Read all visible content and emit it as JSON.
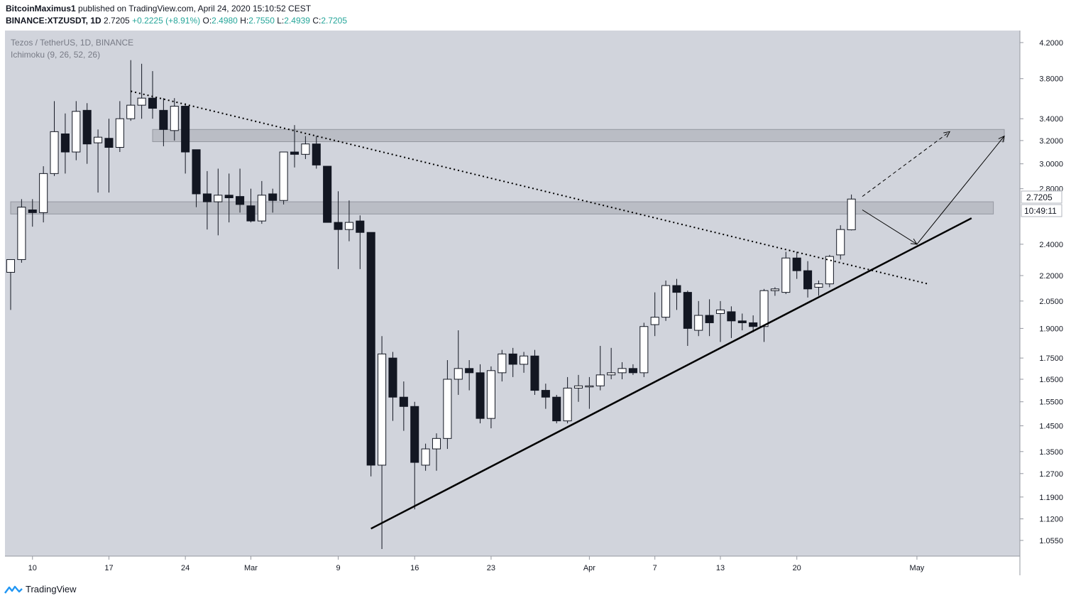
{
  "header": {
    "author": "BitcoinMaximus1",
    "published": "published on TradingView.com, April 24, 2020 15:10:52 CEST",
    "symbol": "BINANCE:XTZUSDT, 1D",
    "last": "2.7205",
    "change": "+0.2225 (+8.91%)",
    "o_label": "O:",
    "o": "2.4980",
    "h_label": "H:",
    "h": "2.7550",
    "l_label": "L:",
    "l": "2.4939",
    "c_label": "C:",
    "c": "2.7205"
  },
  "pane": {
    "title": "Tezos / TetherUS, 1D, BINANCE",
    "indicator": "Ichimoku (9, 26, 52, 26)"
  },
  "price_tag": {
    "value": "2.7205",
    "countdown": "10:49:11"
  },
  "footer": {
    "brand": "TradingView"
  },
  "colors": {
    "background": "#d1d4dc",
    "up_body": "#ffffff",
    "down_body": "#131722",
    "zone": "#b2b5be",
    "line": "#000000"
  },
  "chart_data": {
    "type": "candlestick",
    "y_scale": "log",
    "ylim": [
      1.02,
      4.3
    ],
    "y_ticks": [
      "4.2000",
      "3.8000",
      "3.4000",
      "3.2000",
      "3.0000",
      "2.8000",
      "2.4000",
      "2.2000",
      "2.0500",
      "1.9000",
      "1.7500",
      "1.6500",
      "1.5500",
      "1.4500",
      "1.3500",
      "1.2700",
      "1.1900",
      "1.1200",
      "1.0550"
    ],
    "x_ticks": [
      {
        "date": "2020-02-10",
        "label": "10"
      },
      {
        "date": "2020-02-17",
        "label": "17"
      },
      {
        "date": "2020-02-24",
        "label": "24"
      },
      {
        "date": "2020-03-01",
        "label": "Mar"
      },
      {
        "date": "2020-03-09",
        "label": "9"
      },
      {
        "date": "2020-03-16",
        "label": "16"
      },
      {
        "date": "2020-03-23",
        "label": "23"
      },
      {
        "date": "2020-04-01",
        "label": "Apr"
      },
      {
        "date": "2020-04-07",
        "label": "7"
      },
      {
        "date": "2020-04-13",
        "label": "13"
      },
      {
        "date": "2020-04-20",
        "label": "20"
      },
      {
        "date": "2020-05-01",
        "label": "May"
      }
    ],
    "x_range": [
      "2020-02-08",
      "2020-05-09"
    ],
    "candles": [
      {
        "d": "2020-02-08",
        "o": 2.22,
        "h": 2.3,
        "l": 2.0,
        "c": 2.3
      },
      {
        "d": "2020-02-09",
        "o": 2.3,
        "h": 2.72,
        "l": 2.28,
        "c": 2.66
      },
      {
        "d": "2020-02-10",
        "o": 2.64,
        "h": 2.72,
        "l": 2.52,
        "c": 2.62
      },
      {
        "d": "2020-02-11",
        "o": 2.62,
        "h": 2.98,
        "l": 2.55,
        "c": 2.92
      },
      {
        "d": "2020-02-12",
        "o": 2.92,
        "h": 3.57,
        "l": 2.9,
        "c": 3.28
      },
      {
        "d": "2020-02-13",
        "o": 3.26,
        "h": 3.45,
        "l": 2.92,
        "c": 3.1
      },
      {
        "d": "2020-02-14",
        "o": 3.1,
        "h": 3.57,
        "l": 3.03,
        "c": 3.47
      },
      {
        "d": "2020-02-15",
        "o": 3.48,
        "h": 3.55,
        "l": 3.0,
        "c": 3.17
      },
      {
        "d": "2020-02-16",
        "o": 3.18,
        "h": 3.3,
        "l": 2.77,
        "c": 3.23
      },
      {
        "d": "2020-02-17",
        "o": 3.22,
        "h": 3.4,
        "l": 2.77,
        "c": 3.14
      },
      {
        "d": "2020-02-18",
        "o": 3.14,
        "h": 3.57,
        "l": 3.1,
        "c": 3.4
      },
      {
        "d": "2020-02-19",
        "o": 3.4,
        "h": 4.0,
        "l": 3.38,
        "c": 3.53
      },
      {
        "d": "2020-02-20",
        "o": 3.53,
        "h": 3.96,
        "l": 3.4,
        "c": 3.6
      },
      {
        "d": "2020-02-21",
        "o": 3.6,
        "h": 3.88,
        "l": 3.4,
        "c": 3.5
      },
      {
        "d": "2020-02-22",
        "o": 3.48,
        "h": 3.6,
        "l": 3.15,
        "c": 3.3
      },
      {
        "d": "2020-02-23",
        "o": 3.29,
        "h": 3.6,
        "l": 3.2,
        "c": 3.52
      },
      {
        "d": "2020-02-24",
        "o": 3.52,
        "h": 3.55,
        "l": 2.92,
        "c": 3.1
      },
      {
        "d": "2020-02-25",
        "o": 3.12,
        "h": 3.12,
        "l": 2.66,
        "c": 2.76
      },
      {
        "d": "2020-02-26",
        "o": 2.76,
        "h": 2.94,
        "l": 2.5,
        "c": 2.7
      },
      {
        "d": "2020-02-27",
        "o": 2.7,
        "h": 2.96,
        "l": 2.46,
        "c": 2.75
      },
      {
        "d": "2020-02-28",
        "o": 2.75,
        "h": 2.92,
        "l": 2.55,
        "c": 2.73
      },
      {
        "d": "2020-02-29",
        "o": 2.74,
        "h": 2.96,
        "l": 2.62,
        "c": 2.68
      },
      {
        "d": "2020-03-01",
        "o": 2.67,
        "h": 2.8,
        "l": 2.55,
        "c": 2.56
      },
      {
        "d": "2020-03-02",
        "o": 2.56,
        "h": 2.86,
        "l": 2.54,
        "c": 2.75
      },
      {
        "d": "2020-03-03",
        "o": 2.76,
        "h": 2.8,
        "l": 2.62,
        "c": 2.71
      },
      {
        "d": "2020-03-04",
        "o": 2.71,
        "h": 3.1,
        "l": 2.68,
        "c": 3.1
      },
      {
        "d": "2020-03-05",
        "o": 3.1,
        "h": 3.34,
        "l": 2.97,
        "c": 3.08
      },
      {
        "d": "2020-03-06",
        "o": 3.08,
        "h": 3.24,
        "l": 3.04,
        "c": 3.17
      },
      {
        "d": "2020-03-07",
        "o": 3.17,
        "h": 3.24,
        "l": 2.96,
        "c": 2.99
      },
      {
        "d": "2020-03-08",
        "o": 2.98,
        "h": 2.98,
        "l": 2.55,
        "c": 2.55
      },
      {
        "d": "2020-03-09",
        "o": 2.55,
        "h": 2.78,
        "l": 2.24,
        "c": 2.5
      },
      {
        "d": "2020-03-10",
        "o": 2.5,
        "h": 2.71,
        "l": 2.42,
        "c": 2.55
      },
      {
        "d": "2020-03-11",
        "o": 2.56,
        "h": 2.6,
        "l": 2.24,
        "c": 2.48
      },
      {
        "d": "2020-03-12",
        "o": 2.48,
        "h": 2.48,
        "l": 1.26,
        "c": 1.3
      },
      {
        "d": "2020-03-13",
        "o": 1.3,
        "h": 1.86,
        "l": 1.03,
        "c": 1.77
      },
      {
        "d": "2020-03-14",
        "o": 1.75,
        "h": 1.78,
        "l": 1.47,
        "c": 1.57
      },
      {
        "d": "2020-03-15",
        "o": 1.57,
        "h": 1.64,
        "l": 1.43,
        "c": 1.53
      },
      {
        "d": "2020-03-16",
        "o": 1.53,
        "h": 1.55,
        "l": 1.15,
        "c": 1.31
      },
      {
        "d": "2020-03-17",
        "o": 1.3,
        "h": 1.38,
        "l": 1.28,
        "c": 1.36
      },
      {
        "d": "2020-03-18",
        "o": 1.36,
        "h": 1.42,
        "l": 1.28,
        "c": 1.4
      },
      {
        "d": "2020-03-19",
        "o": 1.4,
        "h": 1.74,
        "l": 1.36,
        "c": 1.65
      },
      {
        "d": "2020-03-20",
        "o": 1.65,
        "h": 1.89,
        "l": 1.58,
        "c": 1.7
      },
      {
        "d": "2020-03-21",
        "o": 1.7,
        "h": 1.74,
        "l": 1.6,
        "c": 1.68
      },
      {
        "d": "2020-03-22",
        "o": 1.68,
        "h": 1.72,
        "l": 1.46,
        "c": 1.48
      },
      {
        "d": "2020-03-23",
        "o": 1.48,
        "h": 1.71,
        "l": 1.44,
        "c": 1.69
      },
      {
        "d": "2020-03-24",
        "o": 1.68,
        "h": 1.79,
        "l": 1.64,
        "c": 1.77
      },
      {
        "d": "2020-03-25",
        "o": 1.77,
        "h": 1.8,
        "l": 1.66,
        "c": 1.72
      },
      {
        "d": "2020-03-26",
        "o": 1.72,
        "h": 1.78,
        "l": 1.68,
        "c": 1.76
      },
      {
        "d": "2020-03-27",
        "o": 1.76,
        "h": 1.79,
        "l": 1.58,
        "c": 1.6
      },
      {
        "d": "2020-03-28",
        "o": 1.6,
        "h": 1.63,
        "l": 1.52,
        "c": 1.57
      },
      {
        "d": "2020-03-29",
        "o": 1.57,
        "h": 1.58,
        "l": 1.46,
        "c": 1.47
      },
      {
        "d": "2020-03-30",
        "o": 1.47,
        "h": 1.66,
        "l": 1.46,
        "c": 1.61
      },
      {
        "d": "2020-03-31",
        "o": 1.61,
        "h": 1.67,
        "l": 1.55,
        "c": 1.62
      },
      {
        "d": "2020-04-01",
        "o": 1.62,
        "h": 1.66,
        "l": 1.52,
        "c": 1.62
      },
      {
        "d": "2020-04-02",
        "o": 1.62,
        "h": 1.81,
        "l": 1.6,
        "c": 1.67
      },
      {
        "d": "2020-04-03",
        "o": 1.67,
        "h": 1.8,
        "l": 1.65,
        "c": 1.68
      },
      {
        "d": "2020-04-04",
        "o": 1.68,
        "h": 1.73,
        "l": 1.65,
        "c": 1.7
      },
      {
        "d": "2020-04-05",
        "o": 1.7,
        "h": 1.72,
        "l": 1.67,
        "c": 1.68
      },
      {
        "d": "2020-04-06",
        "o": 1.68,
        "h": 1.93,
        "l": 1.66,
        "c": 1.91
      },
      {
        "d": "2020-04-07",
        "o": 1.92,
        "h": 2.1,
        "l": 1.86,
        "c": 1.96
      },
      {
        "d": "2020-04-08",
        "o": 1.96,
        "h": 2.17,
        "l": 1.94,
        "c": 2.14
      },
      {
        "d": "2020-04-09",
        "o": 2.14,
        "h": 2.18,
        "l": 2.0,
        "c": 2.1
      },
      {
        "d": "2020-04-10",
        "o": 2.1,
        "h": 2.11,
        "l": 1.81,
        "c": 1.9
      },
      {
        "d": "2020-04-11",
        "o": 1.89,
        "h": 2.05,
        "l": 1.86,
        "c": 1.97
      },
      {
        "d": "2020-04-12",
        "o": 1.97,
        "h": 2.06,
        "l": 1.86,
        "c": 1.93
      },
      {
        "d": "2020-04-13",
        "o": 1.98,
        "h": 2.05,
        "l": 1.83,
        "c": 2.0
      },
      {
        "d": "2020-04-14",
        "o": 1.99,
        "h": 2.02,
        "l": 1.85,
        "c": 1.94
      },
      {
        "d": "2020-04-15",
        "o": 1.94,
        "h": 1.98,
        "l": 1.89,
        "c": 1.93
      },
      {
        "d": "2020-04-16",
        "o": 1.93,
        "h": 1.97,
        "l": 1.88,
        "c": 1.91
      },
      {
        "d": "2020-04-17",
        "o": 1.91,
        "h": 2.12,
        "l": 1.83,
        "c": 2.11
      },
      {
        "d": "2020-04-18",
        "o": 2.11,
        "h": 2.13,
        "l": 2.08,
        "c": 2.12
      },
      {
        "d": "2020-04-19",
        "o": 2.1,
        "h": 2.35,
        "l": 2.09,
        "c": 2.31
      },
      {
        "d": "2020-04-20",
        "o": 2.31,
        "h": 2.35,
        "l": 2.18,
        "c": 2.23
      },
      {
        "d": "2020-04-21",
        "o": 2.23,
        "h": 2.29,
        "l": 2.07,
        "c": 2.12
      },
      {
        "d": "2020-04-22",
        "o": 2.13,
        "h": 2.17,
        "l": 2.08,
        "c": 2.15
      },
      {
        "d": "2020-04-23",
        "o": 2.15,
        "h": 2.33,
        "l": 2.13,
        "c": 2.32
      },
      {
        "d": "2020-04-24",
        "o": 2.33,
        "h": 2.53,
        "l": 2.3,
        "c": 2.5
      },
      {
        "d": "2020-04-25",
        "o": 2.498,
        "h": 2.755,
        "l": 2.4939,
        "c": 2.7205
      }
    ],
    "zones": [
      {
        "from": "2020-02-21",
        "to": "2020-05-09",
        "low": 3.19,
        "high": 3.3
      },
      {
        "from": "2020-02-08",
        "to": "2020-05-08",
        "low": 2.61,
        "high": 2.7
      }
    ],
    "lines": [
      {
        "style": "dotted",
        "from": {
          "d": "2020-02-19",
          "v": 3.67
        },
        "to": {
          "d": "2020-05-02",
          "v": 2.15
        }
      },
      {
        "style": "solid",
        "from": {
          "d": "2020-03-12",
          "v": 1.09
        },
        "to": {
          "d": "2020-05-06",
          "v": 2.58
        }
      },
      {
        "style": "arrow",
        "from": {
          "d": "2020-04-26",
          "v": 2.64
        },
        "to": {
          "d": "2020-05-01",
          "v": 2.4
        }
      },
      {
        "style": "arrow",
        "from": {
          "d": "2020-05-01",
          "v": 2.4
        },
        "to": {
          "d": "2020-05-09",
          "v": 3.24
        }
      },
      {
        "style": "dashed-arrow",
        "from": {
          "d": "2020-04-26",
          "v": 2.74
        },
        "to": {
          "d": "2020-05-04",
          "v": 3.28
        }
      }
    ]
  }
}
